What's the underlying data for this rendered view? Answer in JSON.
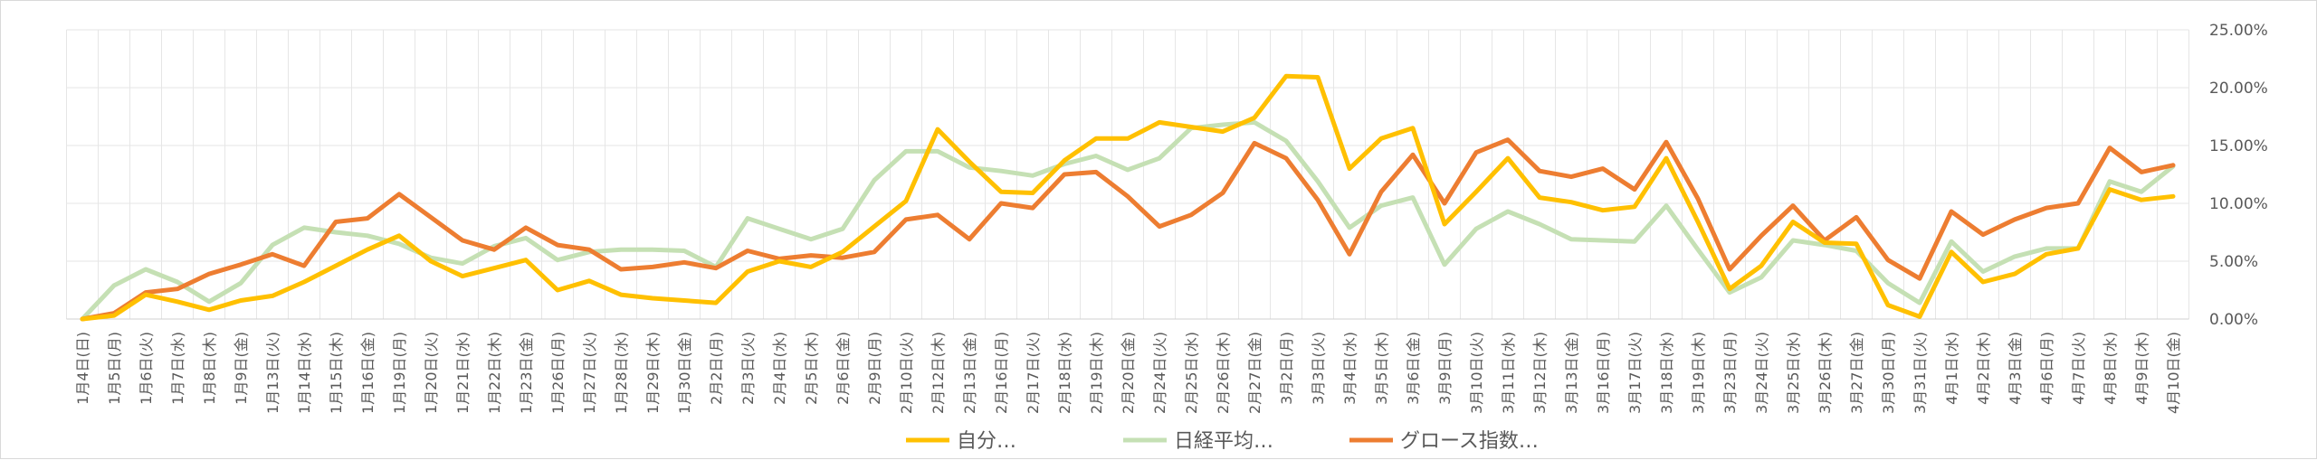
{
  "chart_data": {
    "type": "line",
    "y_axis_position": "right",
    "ylim": [
      0,
      25
    ],
    "y_ticks": [
      "0.00%",
      "5.00%",
      "10.00%",
      "15.00%",
      "20.00%",
      "25.00%"
    ],
    "grid": true,
    "legend_position": "bottom",
    "categories": [
      "1月4日(日)",
      "1月5日(月)",
      "1月6日(火)",
      "1月7日(水)",
      "1月8日(木)",
      "1月9日(金)",
      "1月13日(火)",
      "1月14日(水)",
      "1月15日(木)",
      "1月16日(金)",
      "1月19日(月)",
      "1月20日(火)",
      "1月21日(水)",
      "1月22日(木)",
      "1月23日(金)",
      "1月26日(月)",
      "1月27日(火)",
      "1月28日(水)",
      "1月29日(木)",
      "1月30日(金)",
      "2月2日(月)",
      "2月3日(火)",
      "2月4日(水)",
      "2月5日(木)",
      "2月6日(金)",
      "2月9日(月)",
      "2月10日(火)",
      "2月12日(木)",
      "2月13日(金)",
      "2月16日(月)",
      "2月17日(火)",
      "2月18日(水)",
      "2月19日(木)",
      "2月20日(金)",
      "2月24日(火)",
      "2月25日(水)",
      "2月26日(木)",
      "2月27日(金)",
      "3月2日(月)",
      "3月3日(火)",
      "3月4日(水)",
      "3月5日(木)",
      "3月6日(金)",
      "3月9日(月)",
      "3月10日(火)",
      "3月11日(水)",
      "3月12日(木)",
      "3月13日(金)",
      "3月16日(月)",
      "3月17日(火)",
      "3月18日(水)",
      "3月19日(木)",
      "3月23日(月)",
      "3月24日(火)",
      "3月25日(水)",
      "3月26日(木)",
      "3月27日(金)",
      "3月30日(月)",
      "3月31日(火)",
      "4月1日(水)",
      "4月2日(木)",
      "4月3日(金)",
      "4月6日(月)",
      "4月7日(火)",
      "4月8日(水)",
      "4月9日(木)",
      "4月10日(金)"
    ],
    "series": [
      {
        "name": "自分…",
        "color": "#FFC000",
        "values": [
          0.0,
          0.3,
          2.1,
          1.5,
          0.8,
          1.6,
          2.0,
          3.2,
          4.6,
          6.0,
          7.2,
          5.0,
          3.7,
          4.4,
          5.1,
          2.5,
          3.3,
          2.1,
          1.8,
          1.6,
          1.4,
          4.1,
          5.0,
          4.5,
          5.8,
          8.0,
          10.2,
          16.4,
          13.6,
          11.0,
          10.9,
          13.7,
          15.6,
          15.6,
          17.0,
          16.6,
          16.2,
          17.4,
          21.0,
          20.9,
          13.0,
          15.6,
          16.5,
          8.2,
          11.0,
          13.9,
          10.5,
          10.1,
          9.4,
          9.7,
          13.9,
          8.4,
          2.6,
          4.6,
          8.4,
          6.6,
          6.5,
          1.2,
          0.2,
          5.8,
          3.2,
          3.9,
          5.6,
          6.1,
          11.2,
          10.3,
          10.6
        ]
      },
      {
        "name": "日経平均…",
        "color": "#C5E0B4",
        "values": [
          0.0,
          2.9,
          4.3,
          3.2,
          1.5,
          3.1,
          6.4,
          7.9,
          7.5,
          7.2,
          6.5,
          5.3,
          4.8,
          6.3,
          7.0,
          5.1,
          5.8,
          6.0,
          6.0,
          5.9,
          4.5,
          8.7,
          7.8,
          6.9,
          7.8,
          12.0,
          14.5,
          14.5,
          13.1,
          12.8,
          12.4,
          13.4,
          14.1,
          12.9,
          13.9,
          16.5,
          16.8,
          17.0,
          15.4,
          11.9,
          7.9,
          9.8,
          10.5,
          4.7,
          7.8,
          9.3,
          8.2,
          6.9,
          6.8,
          6.7,
          9.8,
          6.0,
          2.3,
          3.6,
          6.8,
          6.4,
          5.9,
          3.1,
          1.4,
          6.7,
          4.1,
          5.4,
          6.1,
          6.1,
          11.9,
          11.0,
          13.2
        ]
      },
      {
        "name": "グロース指数…",
        "color": "#ED7D31",
        "values": [
          0.0,
          0.5,
          2.3,
          2.6,
          3.9,
          4.7,
          5.6,
          4.6,
          8.4,
          8.7,
          10.8,
          8.8,
          6.8,
          6.0,
          7.9,
          6.4,
          6.0,
          4.3,
          4.5,
          4.9,
          4.4,
          5.9,
          5.2,
          5.5,
          5.3,
          5.8,
          8.6,
          9.0,
          6.9,
          10.0,
          9.6,
          12.5,
          12.7,
          10.6,
          8.0,
          9.0,
          10.9,
          15.2,
          13.9,
          10.3,
          5.6,
          11.0,
          14.2,
          10.0,
          14.4,
          15.5,
          12.8,
          12.3,
          13.0,
          11.2,
          15.3,
          10.4,
          4.3,
          7.2,
          9.8,
          6.8,
          8.8,
          5.1,
          3.5,
          9.3,
          7.3,
          8.6,
          9.6,
          10.0,
          14.8,
          12.7,
          13.3
        ]
      }
    ]
  }
}
